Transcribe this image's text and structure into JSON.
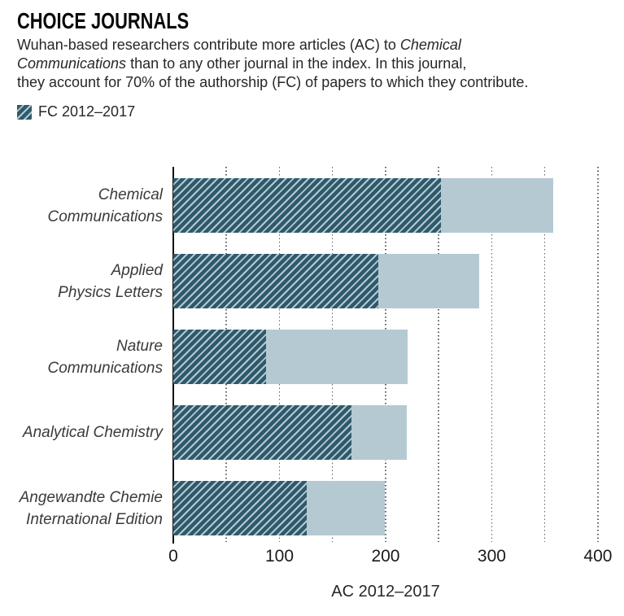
{
  "header": {
    "title": "CHOICE JOURNALS",
    "subtitle_parts": [
      {
        "t": "Wuhan-based researchers contribute more articles (AC) to ",
        "italic": false
      },
      {
        "t": "Chemical\nCommunications",
        "italic": true
      },
      {
        "t": " than to any other journal in the index. In this journal,\nthey account for 70% of the authorship (FC) of papers to which they contribute.",
        "italic": false
      }
    ]
  },
  "legend": {
    "label": "FC 2012–2017",
    "swatch": "fc-hatch-swatch"
  },
  "colors": {
    "fc_hatch_dark": "#2e5a6b",
    "ac_light_blue": "#b5c9d2",
    "axis": "#111111",
    "gridline": "#606060"
  },
  "chart_data": {
    "type": "bar",
    "orientation": "horizontal",
    "title": "CHOICE JOURNALS",
    "categories": [
      "Chemical Communications",
      "Applied Physics Letters",
      "Nature Communications",
      "Analytical Chemistry",
      "Angewandte Chemie International Edition"
    ],
    "category_label_lines": [
      [
        "Chemical",
        "Communications"
      ],
      [
        "Applied",
        "Physics Letters"
      ],
      [
        "Nature",
        "Communications"
      ],
      [
        "Analytical Chemistry"
      ],
      [
        "Angewandte Chemie",
        "International Edition"
      ]
    ],
    "series": [
      {
        "name": "AC 2012–2017",
        "style": "solid-light-blue",
        "values": [
          358,
          288,
          221,
          220,
          199
        ]
      },
      {
        "name": "FC 2012–2017",
        "style": "hatched-overlay",
        "values": [
          252,
          193,
          87,
          168,
          126
        ]
      }
    ],
    "xlabel": "AC 2012–2017",
    "ylabel": "",
    "x_ticks": [
      0,
      100,
      200,
      300,
      400
    ],
    "xlim": [
      0,
      410
    ],
    "grid_step": 50,
    "grid": "dotted-vertical",
    "legend_position": "top-left"
  }
}
